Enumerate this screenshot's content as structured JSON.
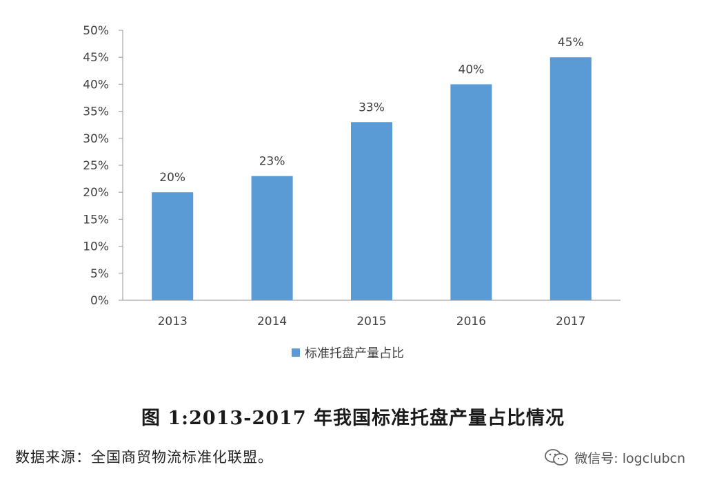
{
  "chart_data": {
    "type": "bar",
    "categories": [
      "2013",
      "2014",
      "2015",
      "2016",
      "2017"
    ],
    "series": [
      {
        "name": "标准托盘产量占比",
        "values": [
          20,
          23,
          33,
          40,
          45
        ]
      }
    ],
    "data_labels": [
      "20%",
      "23%",
      "33%",
      "40%",
      "45%"
    ],
    "y_ticks": [
      "0%",
      "5%",
      "10%",
      "15%",
      "20%",
      "25%",
      "30%",
      "35%",
      "40%",
      "45%",
      "50%"
    ],
    "ylim": [
      0,
      50
    ],
    "y_step": 5,
    "grid": false,
    "legend_position": "bottom",
    "bar_color": "#5B9BD5",
    "axis_color": "#A6A6A6"
  },
  "caption": "图 1:2013-2017 年我国标准托盘产量占比情况",
  "source": "数据来源：全国商贸物流标准化联盟。",
  "watermark": {
    "text": "微信号: logclubcn",
    "icon": "wechat-icon"
  }
}
